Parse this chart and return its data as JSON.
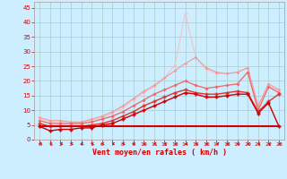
{
  "background_color": "#cceeff",
  "grid_color": "#aacccc",
  "xlabel": "Vent moyen/en rafales ( km/h )",
  "xlabel_color": "#cc0000",
  "xlabel_fontsize": 6,
  "xtick_color": "#cc0000",
  "ytick_color": "#cc0000",
  "ylim": [
    0,
    47
  ],
  "xlim": [
    -0.5,
    23.5
  ],
  "yticks": [
    0,
    5,
    10,
    15,
    20,
    25,
    30,
    35,
    40,
    45
  ],
  "xticks": [
    0,
    1,
    2,
    3,
    4,
    5,
    6,
    7,
    8,
    9,
    10,
    11,
    12,
    13,
    14,
    15,
    16,
    17,
    18,
    19,
    20,
    21,
    22,
    23
  ],
  "lines": [
    {
      "x": [
        0,
        1,
        2,
        3,
        4,
        5,
        6,
        7,
        8,
        9,
        10,
        11,
        12,
        13,
        14,
        15,
        16,
        17,
        18,
        19,
        20,
        21,
        22,
        23
      ],
      "y": [
        4.5,
        4.5,
        4.5,
        4.5,
        4.5,
        4.5,
        4.5,
        4.5,
        4.5,
        4.5,
        4.5,
        4.5,
        4.5,
        4.5,
        4.5,
        4.5,
        4.5,
        4.5,
        4.5,
        4.5,
        4.5,
        4.5,
        4.5,
        4.5
      ],
      "color": "#cc0000",
      "lw": 1.5,
      "marker": null,
      "markersize": 0,
      "zorder": 6
    },
    {
      "x": [
        0,
        1,
        2,
        3,
        4,
        5,
        6,
        7,
        8,
        9,
        10,
        11,
        12,
        13,
        14,
        15,
        16,
        17,
        18,
        19,
        20,
        21,
        22,
        23
      ],
      "y": [
        4.5,
        3.0,
        3.5,
        3.5,
        4.0,
        4.0,
        5.0,
        5.5,
        7.0,
        8.5,
        10.0,
        11.5,
        13.0,
        14.5,
        16.0,
        15.5,
        14.5,
        14.5,
        15.0,
        15.5,
        15.5,
        9.0,
        12.5,
        4.5
      ],
      "color": "#cc0000",
      "lw": 1.0,
      "marker": "P",
      "markersize": 2.5,
      "zorder": 7
    },
    {
      "x": [
        0,
        1,
        2,
        3,
        4,
        5,
        6,
        7,
        8,
        9,
        10,
        11,
        12,
        13,
        14,
        15,
        16,
        17,
        18,
        19,
        20,
        21,
        22,
        23
      ],
      "y": [
        5.5,
        4.5,
        4.5,
        4.5,
        4.5,
        5.0,
        5.5,
        6.5,
        8.0,
        9.5,
        11.5,
        13.0,
        14.5,
        16.0,
        17.0,
        16.0,
        15.5,
        15.5,
        16.0,
        16.5,
        16.0,
        9.5,
        13.0,
        15.5
      ],
      "color": "#dd3333",
      "lw": 1.0,
      "marker": "P",
      "markersize": 2.5,
      "zorder": 5
    },
    {
      "x": [
        0,
        1,
        2,
        3,
        4,
        5,
        6,
        7,
        8,
        9,
        10,
        11,
        12,
        13,
        14,
        15,
        16,
        17,
        18,
        19,
        20,
        21,
        22,
        23
      ],
      "y": [
        6.5,
        5.5,
        5.5,
        5.5,
        5.5,
        6.0,
        7.0,
        8.0,
        9.5,
        11.5,
        13.5,
        15.5,
        17.0,
        18.5,
        20.0,
        18.5,
        17.5,
        18.0,
        18.5,
        19.0,
        23.0,
        10.0,
        18.0,
        16.0
      ],
      "color": "#ee6666",
      "lw": 0.9,
      "marker": "P",
      "markersize": 2.2,
      "zorder": 4
    },
    {
      "x": [
        0,
        1,
        2,
        3,
        4,
        5,
        6,
        7,
        8,
        9,
        10,
        11,
        12,
        13,
        14,
        15,
        16,
        17,
        18,
        19,
        20,
        21,
        22,
        23
      ],
      "y": [
        7.5,
        6.5,
        6.5,
        6.0,
        6.0,
        7.0,
        8.0,
        9.5,
        11.5,
        14.0,
        16.5,
        18.5,
        21.0,
        23.5,
        26.0,
        28.0,
        24.5,
        23.0,
        22.5,
        23.0,
        24.5,
        11.5,
        19.0,
        17.0
      ],
      "color": "#ee9999",
      "lw": 0.8,
      "marker": "P",
      "markersize": 2.0,
      "zorder": 3
    },
    {
      "x": [
        0,
        1,
        2,
        3,
        4,
        5,
        6,
        7,
        8,
        9,
        10,
        11,
        12,
        13,
        14,
        15,
        16,
        17,
        18,
        19,
        20,
        21,
        22,
        23
      ],
      "y": [
        7.0,
        6.0,
        6.0,
        5.5,
        5.5,
        6.5,
        7.5,
        9.0,
        11.0,
        13.5,
        16.0,
        18.0,
        21.0,
        25.5,
        43.0,
        28.0,
        24.0,
        22.5,
        22.5,
        23.0,
        24.5,
        11.5,
        18.5,
        16.5
      ],
      "color": "#ffbbbb",
      "lw": 0.7,
      "marker": "P",
      "markersize": 1.8,
      "zorder": 2
    }
  ],
  "arrow_angles_deg": [
    225,
    225,
    220,
    215,
    210,
    205,
    205,
    200,
    195,
    190,
    185,
    185,
    180,
    180,
    180,
    180,
    180,
    180,
    180,
    180,
    180,
    180,
    175,
    175
  ]
}
